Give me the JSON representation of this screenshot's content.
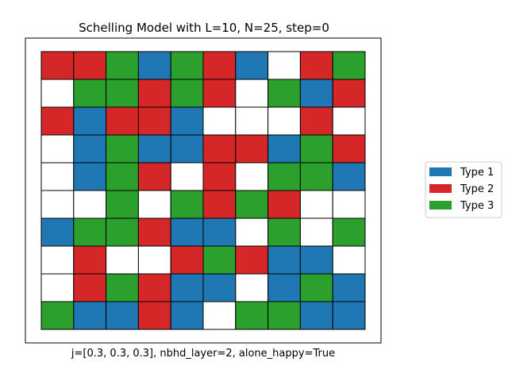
{
  "chart_data": {
    "type": "heatmap",
    "title": "Schelling Model with L=10, N=25, step=0",
    "xlabel": "j=[0.3, 0.3, 0.3], nbhd_layer=2, alone_happy=True",
    "ylabel": "",
    "grid_size": 10,
    "empty_color": "#ffffff",
    "grid_line_color": "#000000",
    "legend_placement": "right",
    "series": [
      {
        "name": "Type 1",
        "code": 1,
        "color": "#1f77b4"
      },
      {
        "name": "Type 2",
        "code": 2,
        "color": "#d62728"
      },
      {
        "name": "Type 3",
        "code": 3,
        "color": "#2ca02c"
      }
    ],
    "cells": [
      [
        2,
        2,
        3,
        1,
        3,
        2,
        1,
        0,
        2,
        3
      ],
      [
        0,
        3,
        3,
        2,
        3,
        2,
        0,
        3,
        1,
        2
      ],
      [
        2,
        1,
        2,
        2,
        1,
        0,
        0,
        0,
        2,
        0
      ],
      [
        0,
        1,
        3,
        1,
        1,
        2,
        2,
        1,
        3,
        2
      ],
      [
        0,
        1,
        3,
        2,
        0,
        2,
        0,
        3,
        3,
        1
      ],
      [
        0,
        0,
        3,
        0,
        3,
        2,
        3,
        2,
        0,
        0
      ],
      [
        1,
        3,
        3,
        2,
        1,
        1,
        0,
        3,
        0,
        3
      ],
      [
        0,
        2,
        0,
        0,
        2,
        3,
        2,
        1,
        1,
        0
      ],
      [
        0,
        2,
        3,
        2,
        1,
        1,
        0,
        1,
        3,
        1
      ],
      [
        3,
        1,
        1,
        2,
        1,
        0,
        3,
        3,
        1,
        1
      ]
    ]
  }
}
